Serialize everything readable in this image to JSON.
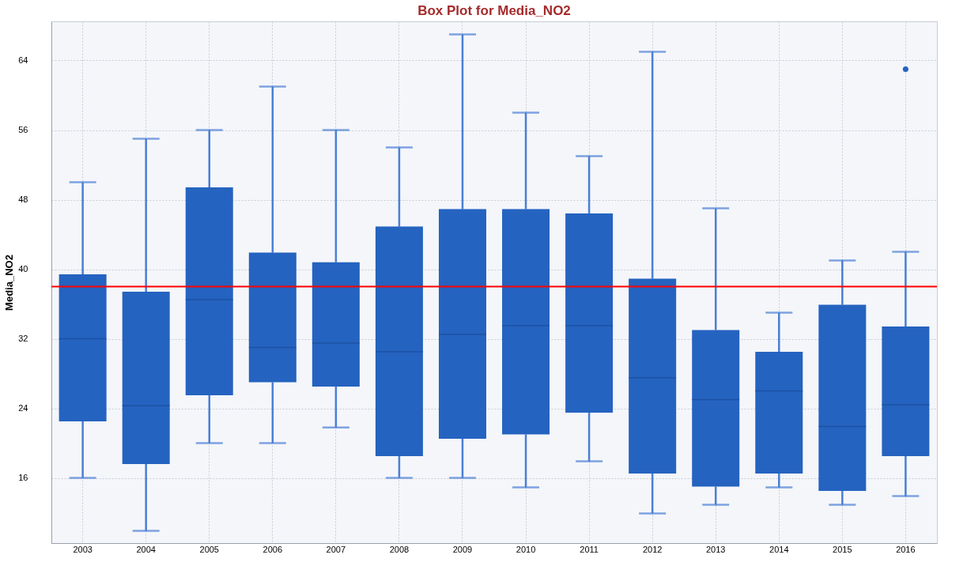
{
  "chart_data": {
    "type": "box",
    "title": "Box Plot for Media_NO2",
    "ylabel": "Media_NO2",
    "categories": [
      "2003",
      "2004",
      "2005",
      "2006",
      "2007",
      "2008",
      "2009",
      "2010",
      "2011",
      "2012",
      "2013",
      "2014",
      "2015",
      "2016"
    ],
    "boxes": [
      {
        "low": 16,
        "q1": 22.5,
        "median": 32,
        "q3": 39.4,
        "high": 50
      },
      {
        "low": 9.9,
        "q1": 17.6,
        "median": 24.3,
        "q3": 37.4,
        "high": 55
      },
      {
        "low": 20,
        "q1": 25.5,
        "median": 36.5,
        "q3": 49.4,
        "high": 56
      },
      {
        "low": 20,
        "q1": 27,
        "median": 31,
        "q3": 41.9,
        "high": 61
      },
      {
        "low": 21.8,
        "q1": 26.5,
        "median": 31.5,
        "q3": 40.8,
        "high": 56
      },
      {
        "low": 16,
        "q1": 18.5,
        "median": 30.5,
        "q3": 44.9,
        "high": 54
      },
      {
        "low": 16,
        "q1": 20.5,
        "median": 32.5,
        "q3": 46.9,
        "high": 67
      },
      {
        "low": 14.9,
        "q1": 21,
        "median": 33.5,
        "q3": 46.9,
        "high": 58
      },
      {
        "low": 17.9,
        "q1": 23.5,
        "median": 33.5,
        "q3": 46.4,
        "high": 53
      },
      {
        "low": 11.9,
        "q1": 16.5,
        "median": 27.5,
        "q3": 38.9,
        "high": 65
      },
      {
        "low": 12.9,
        "q1": 15,
        "median": 25,
        "q3": 33,
        "high": 47
      },
      {
        "low": 14.9,
        "q1": 16.5,
        "median": 26,
        "q3": 30.5,
        "high": 35
      },
      {
        "low": 12.9,
        "q1": 14.5,
        "median": 21.9,
        "q3": 35.9,
        "high": 41
      },
      {
        "low": 13.9,
        "q1": 18.5,
        "median": 24.4,
        "q3": 33.4,
        "high": 42,
        "outliers": [
          63
        ]
      }
    ],
    "color": "#2563c0",
    "ylim": [
      8.5,
      68.5
    ],
    "yticks": [
      16,
      24,
      32,
      40,
      48,
      56,
      64
    ],
    "grid": true,
    "ref_lines": [
      {
        "axis": "y",
        "value": 38,
        "color": "#ff0000"
      }
    ]
  }
}
